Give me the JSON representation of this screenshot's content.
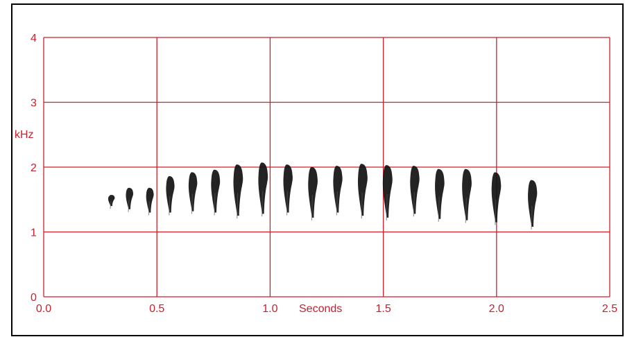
{
  "chart_data": {
    "type": "scatter",
    "title": "",
    "xlabel": "Seconds",
    "ylabel": "kHz",
    "xlim": [
      0,
      2.5
    ],
    "ylim": [
      0,
      4
    ],
    "x_ticks": [
      "0.0",
      "0.5",
      "1.0",
      "1.5",
      "2.0",
      "2.5"
    ],
    "y_ticks": [
      "0",
      "1",
      "2",
      "3",
      "4"
    ],
    "grid": true,
    "colors": {
      "grid": "#d01f2a",
      "axis_text": "#c8202c",
      "notes": "#111111",
      "frame": "#000000"
    },
    "series": [
      {
        "notes": [
          {
            "t": 0.3,
            "f_low": 1.4,
            "f_high": 1.57
          },
          {
            "t": 0.38,
            "f_low": 1.35,
            "f_high": 1.68
          },
          {
            "t": 0.47,
            "f_low": 1.3,
            "f_high": 1.68
          },
          {
            "t": 0.56,
            "f_low": 1.3,
            "f_high": 1.86
          },
          {
            "t": 0.66,
            "f_low": 1.32,
            "f_high": 1.92
          },
          {
            "t": 0.76,
            "f_low": 1.3,
            "f_high": 1.96
          },
          {
            "t": 0.86,
            "f_low": 1.25,
            "f_high": 2.04
          },
          {
            "t": 0.97,
            "f_low": 1.28,
            "f_high": 2.07
          },
          {
            "t": 1.08,
            "f_low": 1.3,
            "f_high": 2.04
          },
          {
            "t": 1.19,
            "f_low": 1.22,
            "f_high": 2.0
          },
          {
            "t": 1.3,
            "f_low": 1.3,
            "f_high": 2.02
          },
          {
            "t": 1.41,
            "f_low": 1.25,
            "f_high": 2.05
          },
          {
            "t": 1.52,
            "f_low": 1.22,
            "f_high": 2.03
          },
          {
            "t": 1.64,
            "f_low": 1.28,
            "f_high": 2.02
          },
          {
            "t": 1.75,
            "f_low": 1.2,
            "f_high": 1.97
          },
          {
            "t": 1.87,
            "f_low": 1.18,
            "f_high": 1.97
          },
          {
            "t": 2.0,
            "f_low": 1.15,
            "f_high": 1.92
          },
          {
            "t": 2.16,
            "f_low": 1.08,
            "f_high": 1.8
          }
        ]
      }
    ]
  }
}
